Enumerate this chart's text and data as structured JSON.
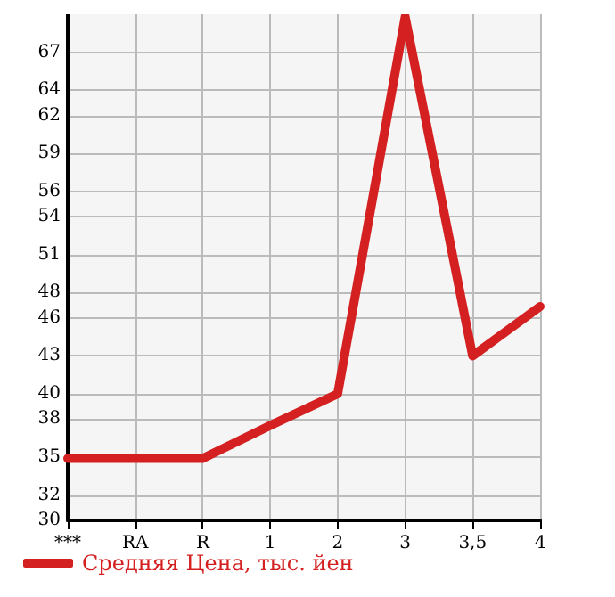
{
  "chart_data": {
    "type": "line",
    "categories": [
      "***",
      "RA",
      "R",
      "1",
      "2",
      "3",
      "3,5",
      "4"
    ],
    "series": [
      {
        "name": "Средняя Цена, тыс. йен",
        "color": "#d42020",
        "values": [
          34.9,
          34.9,
          34.9,
          37.5,
          40,
          69.8,
          43,
          46.9
        ]
      }
    ],
    "ylim": [
      30,
      70
    ],
    "yticks": [
      30,
      32,
      35,
      38,
      40,
      43,
      46,
      48,
      51,
      54,
      56,
      59,
      62,
      64,
      67
    ],
    "grid": true,
    "legend": "bottom left",
    "marker": "none",
    "line_style": "solid"
  }
}
